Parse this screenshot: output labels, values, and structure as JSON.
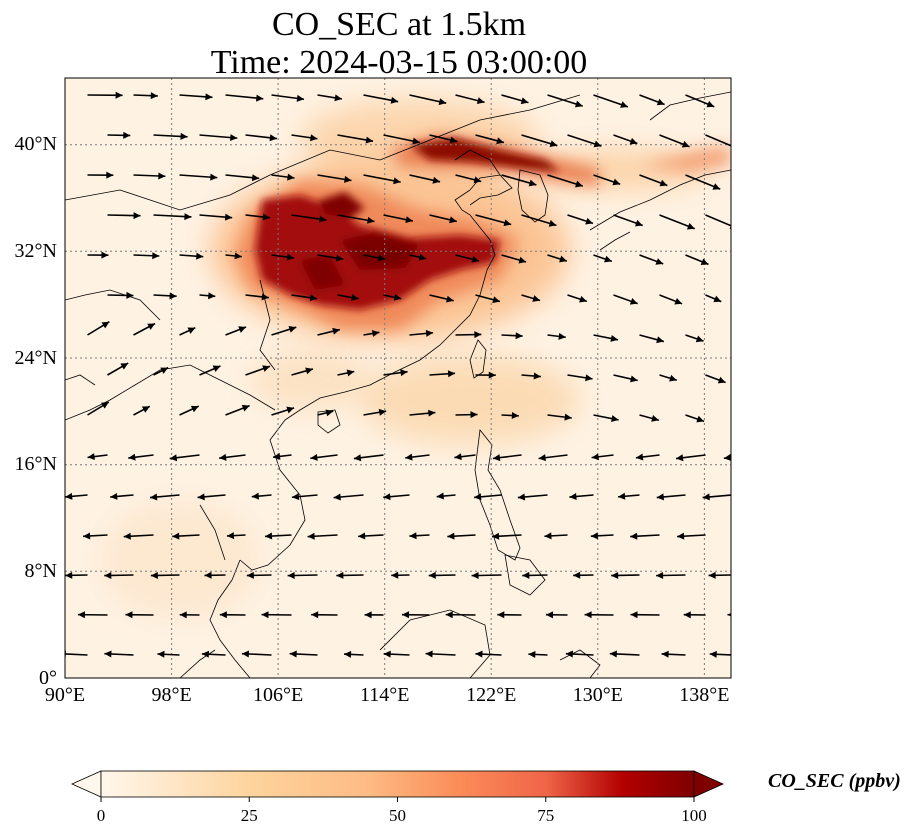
{
  "title": {
    "line1": "CO_SEC at 1.5km",
    "line2": "Time: 2024-03-15 03:00:00"
  },
  "map": {
    "lon_range": [
      90,
      140
    ],
    "lat_range": [
      0,
      45
    ],
    "lon_ticks": [
      "90°E",
      "98°E",
      "106°E",
      "114°E",
      "122°E",
      "130°E",
      "138°E"
    ],
    "lat_ticks": [
      "0°",
      "8°N",
      "16°N",
      "24°N",
      "32°N",
      "40°N"
    ],
    "gridlines": true,
    "field_colors": {
      "low": "#fff5eb",
      "mid": "#fdae6b",
      "high": "#e34a33",
      "max": "#7f0000"
    },
    "coastline_color": "#000000",
    "wind_arrow_color": "#000000"
  },
  "colorbar": {
    "label": "CO_SEC (ppbv)",
    "ticks": [
      "0",
      "25",
      "50",
      "75",
      "100"
    ],
    "range": [
      0,
      100
    ],
    "extend": "both",
    "colormap": "OrRd"
  }
}
